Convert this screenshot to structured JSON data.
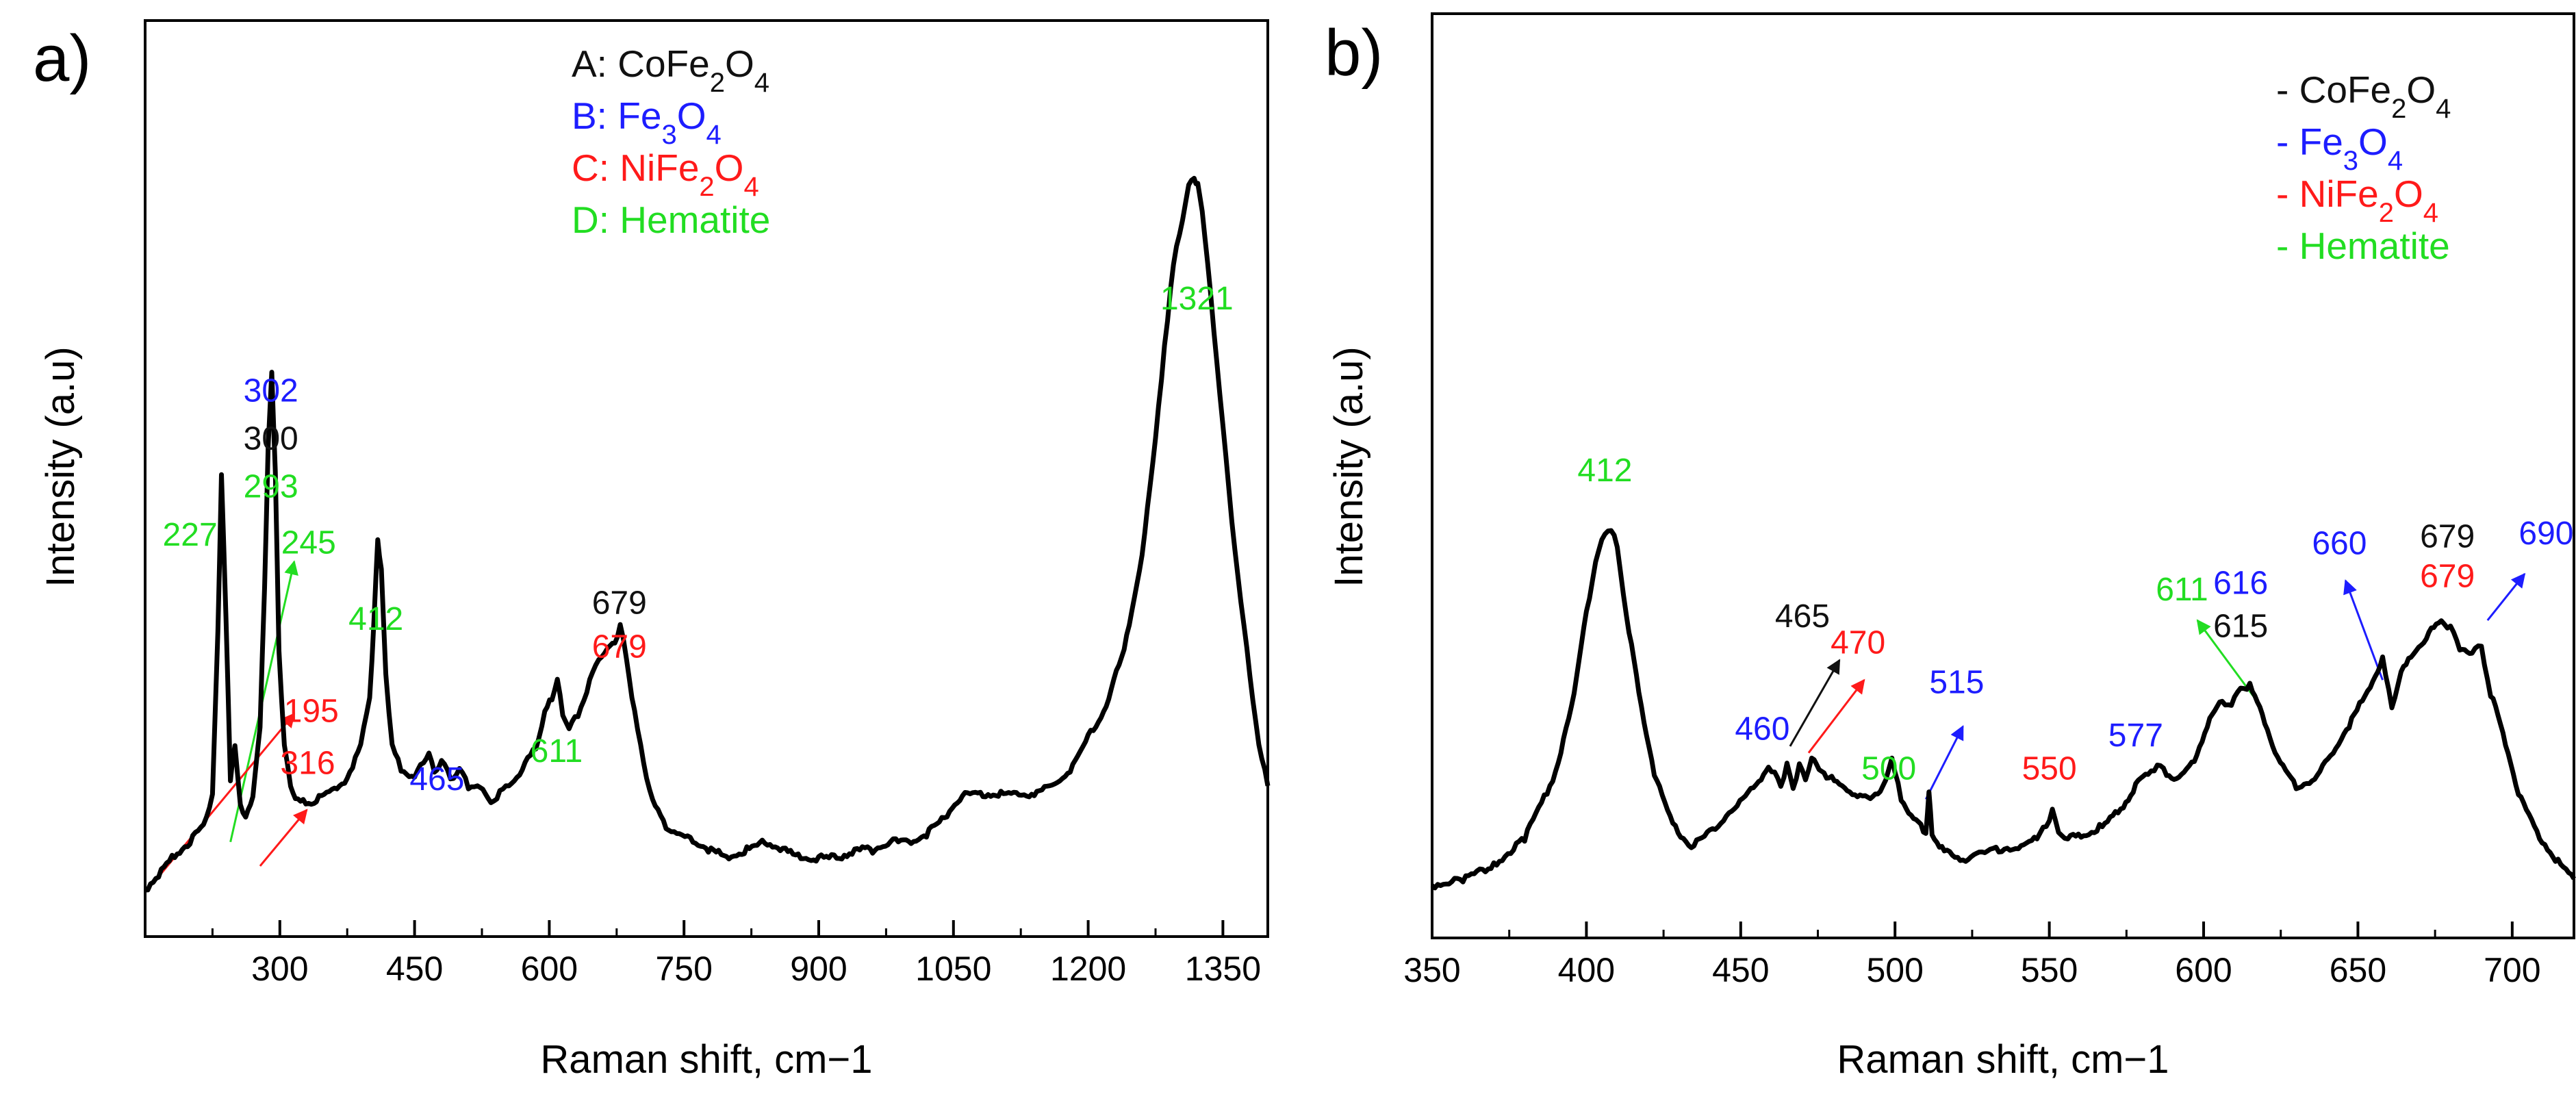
{
  "colors": {
    "A": "#111111",
    "B": "#1d1dff",
    "C": "#ff1a1a",
    "D": "#22dd22",
    "line": "#000000"
  },
  "chart_data": [
    {
      "type": "line",
      "panel_label": "a)",
      "xlabel": "Raman shift, cm−1",
      "ylabel": "Intensity (a.u)",
      "xlim": [
        150,
        1400
      ],
      "ylim": [
        0,
        100
      ],
      "x_ticks": [
        300,
        450,
        600,
        750,
        900,
        1050,
        1200,
        1350
      ],
      "legend": [
        {
          "key": "A",
          "sym": "A:",
          "base": "CoFe",
          "sub1": "2",
          "mid": "O",
          "sub2": "4"
        },
        {
          "key": "B",
          "sym": "B:",
          "base": "Fe",
          "sub1": "3",
          "mid": "O",
          "sub2": "4"
        },
        {
          "key": "C",
          "sym": "C:",
          "base": "NiFe",
          "sub1": "2",
          "mid": "O",
          "sub2": "4"
        },
        {
          "key": "D",
          "sym": "D:",
          "base": "Hematite",
          "sub1": "",
          "mid": "",
          "sub2": ""
        }
      ],
      "annotations": [
        {
          "text": "302",
          "key": "B",
          "x": 290,
          "y": 61
        },
        {
          "text": "300",
          "key": "A",
          "x": 290,
          "y": 55
        },
        {
          "text": "293",
          "key": "D",
          "x": 290,
          "y": 49
        },
        {
          "text": "227",
          "key": "D",
          "x": 200,
          "y": 43
        },
        {
          "text": "245",
          "key": "D",
          "x": 332,
          "y": 42
        },
        {
          "text": "412",
          "key": "D",
          "x": 407,
          "y": 32.5
        },
        {
          "text": "195",
          "key": "C",
          "x": 335,
          "y": 21
        },
        {
          "text": "316",
          "key": "C",
          "x": 331,
          "y": 14.5
        },
        {
          "text": "465",
          "key": "B",
          "x": 475,
          "y": 12.5
        },
        {
          "text": "611",
          "key": "D",
          "x": 608,
          "y": 16
        },
        {
          "text": "679",
          "key": "A",
          "x": 678,
          "y": 34.5
        },
        {
          "text": "679",
          "key": "C",
          "x": 678,
          "y": 29
        },
        {
          "text": "1321",
          "key": "D",
          "x": 1321,
          "y": 72.5
        }
      ],
      "arrows": [
        {
          "key": "D",
          "from": [
            245,
            6
          ],
          "to": [
            316,
            41
          ]
        },
        {
          "key": "C",
          "from": [
            160,
            1
          ],
          "to": [
            316,
            22
          ]
        },
        {
          "key": "C",
          "from": [
            278,
            3
          ],
          "to": [
            330,
            10
          ]
        }
      ],
      "series": [
        {
          "name": "Raman spectrum",
          "x": [
            150,
            165,
            180,
            200,
            215,
            225,
            231,
            235,
            240,
            245,
            250,
            256,
            262,
            270,
            278,
            283,
            287,
            291,
            295,
            299,
            305,
            312,
            320,
            335,
            355,
            375,
            390,
            400,
            405,
            409,
            413,
            418,
            425,
            435,
            450,
            460,
            466,
            472,
            480,
            490,
            500,
            510,
            520,
            535,
            545,
            555,
            570,
            585,
            595,
            603,
            609,
            615,
            622,
            632,
            645,
            655,
            665,
            673,
            679,
            686,
            695,
            705,
            715,
            730,
            745,
            760,
            780,
            800,
            820,
            840,
            860,
            880,
            900,
            920,
            940,
            960,
            980,
            1000,
            1020,
            1040,
            1060,
            1080,
            1100,
            1120,
            1140,
            1160,
            1180,
            1200,
            1220,
            1240,
            1260,
            1275,
            1285,
            1295,
            1305,
            1312,
            1318,
            1322,
            1327,
            1333,
            1340,
            1350,
            1360,
            1370,
            1380,
            1390,
            1400
          ],
          "y": [
            0,
            2,
            4,
            6,
            8,
            12,
            32,
            52,
            34,
            14,
            18,
            11,
            9,
            12,
            20,
            38,
            55,
            65,
            52,
            30,
            18,
            13,
            11,
            11,
            12,
            14,
            18,
            24,
            34,
            44,
            40,
            27,
            18,
            15,
            14,
            16,
            17,
            15,
            16,
            14,
            15,
            13,
            13,
            11,
            12,
            13,
            15,
            18,
            22,
            24,
            26,
            22,
            20,
            22,
            26,
            29,
            30,
            31,
            33,
            29,
            22,
            16,
            11,
            8,
            7,
            6,
            5,
            4,
            5,
            6,
            5,
            4,
            4,
            4,
            5,
            5,
            6,
            6,
            7,
            9,
            12,
            12,
            12,
            12,
            12,
            13,
            15,
            19,
            23,
            30,
            42,
            56,
            68,
            78,
            84,
            88,
            89,
            88,
            85,
            78,
            70,
            58,
            46,
            36,
            27,
            18,
            13
          ]
        }
      ]
    },
    {
      "type": "line",
      "panel_label": "b)",
      "xlabel": "Raman shift, cm−1",
      "ylabel": "Intensity (a.u)",
      "xlim": [
        350,
        720
      ],
      "ylim": [
        0,
        100
      ],
      "x_ticks": [
        350,
        400,
        450,
        500,
        550,
        600,
        650,
        700
      ],
      "legend": [
        {
          "key": "A",
          "sym": "-",
          "base": "CoFe",
          "sub1": "2",
          "mid": "O",
          "sub2": "4"
        },
        {
          "key": "B",
          "sym": "-",
          "base": "Fe",
          "sub1": "3",
          "mid": "O",
          "sub2": "4"
        },
        {
          "key": "C",
          "sym": "-",
          "base": "NiFe",
          "sub1": "2",
          "mid": "O",
          "sub2": "4"
        },
        {
          "key": "D",
          "sym": "-",
          "base": "Hematite",
          "sub1": "",
          "mid": "",
          "sub2": ""
        }
      ],
      "annotations": [
        {
          "text": "412",
          "key": "D",
          "x": 406,
          "y": 62
        },
        {
          "text": "460",
          "key": "B",
          "x": 457,
          "y": 23
        },
        {
          "text": "465",
          "key": "A",
          "x": 470,
          "y": 40
        },
        {
          "text": "470",
          "key": "C",
          "x": 488,
          "y": 36
        },
        {
          "text": "500",
          "key": "D",
          "x": 498,
          "y": 17
        },
        {
          "text": "515",
          "key": "B",
          "x": 520,
          "y": 30
        },
        {
          "text": "550",
          "key": "C",
          "x": 550,
          "y": 17
        },
        {
          "text": "577",
          "key": "B",
          "x": 578,
          "y": 22
        },
        {
          "text": "611",
          "key": "D",
          "x": 593,
          "y": 44
        },
        {
          "text": "616",
          "key": "B",
          "x": 612,
          "y": 45
        },
        {
          "text": "615",
          "key": "A",
          "x": 612,
          "y": 38.5
        },
        {
          "text": "660",
          "key": "B",
          "x": 644,
          "y": 51
        },
        {
          "text": "679",
          "key": "A",
          "x": 679,
          "y": 52
        },
        {
          "text": "679",
          "key": "C",
          "x": 679,
          "y": 46
        },
        {
          "text": "690",
          "key": "B",
          "x": 711,
          "y": 52.5
        }
      ],
      "arrows": [
        {
          "key": "A",
          "from": [
            466,
            22
          ],
          "to": [
            482,
            35
          ]
        },
        {
          "key": "C",
          "from": [
            472,
            21
          ],
          "to": [
            490,
            32
          ]
        },
        {
          "key": "B",
          "from": [
            510,
            14
          ],
          "to": [
            522,
            25
          ]
        },
        {
          "key": "D",
          "from": [
            617,
            29
          ],
          "to": [
            598,
            41
          ]
        },
        {
          "key": "B",
          "from": [
            658,
            32
          ],
          "to": [
            646,
            47
          ]
        },
        {
          "key": "B",
          "from": [
            692,
            41
          ],
          "to": [
            704,
            48
          ]
        }
      ],
      "series": [
        {
          "name": "Raman spectrum",
          "x": [
            350,
            360,
            370,
            380,
            390,
            396,
            400,
            403,
            406,
            408,
            410,
            413,
            417,
            422,
            428,
            434,
            440,
            448,
            455,
            459,
            461,
            463,
            465,
            467,
            469,
            471,
            473,
            477,
            482,
            487,
            492,
            496,
            499,
            502,
            506,
            510,
            511,
            512,
            516,
            522,
            530,
            540,
            546,
            549,
            551,
            553,
            556,
            562,
            568,
            574,
            578,
            582,
            585,
            588,
            592,
            597,
            602,
            606,
            609,
            612,
            615,
            619,
            624,
            630,
            636,
            642,
            648,
            654,
            658,
            661,
            664,
            668,
            673,
            677,
            680,
            683,
            687,
            690,
            693,
            697,
            702,
            708,
            714,
            720
          ],
          "y": [
            1,
            2,
            4,
            8,
            18,
            30,
            42,
            50,
            54,
            55,
            52,
            42,
            30,
            18,
            10,
            7,
            9,
            13,
            16,
            19,
            18,
            16,
            19,
            16,
            19,
            17,
            20,
            18,
            16,
            15,
            14,
            16,
            20,
            14,
            11,
            9,
            15,
            9,
            6,
            5,
            6,
            7,
            8,
            10,
            12,
            9,
            8,
            9,
            10,
            13,
            16,
            18,
            19,
            18,
            17,
            20,
            26,
            29,
            28,
            31,
            31,
            27,
            20,
            16,
            17,
            21,
            26,
            31,
            35,
            28,
            33,
            36,
            39,
            41,
            40,
            37,
            36,
            37,
            30,
            24,
            15,
            9,
            5,
            2
          ]
        }
      ]
    }
  ]
}
